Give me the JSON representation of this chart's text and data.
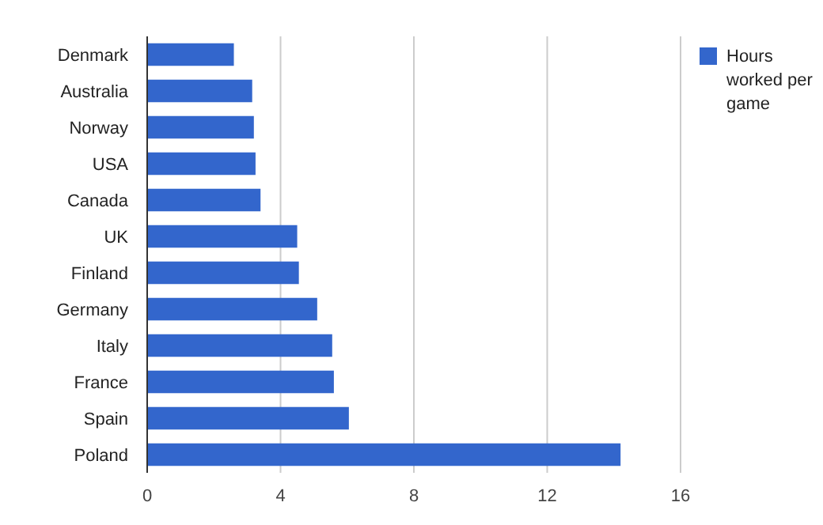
{
  "chart_data": {
    "type": "bar",
    "orientation": "horizontal",
    "categories": [
      "Denmark",
      "Australia",
      "Norway",
      "USA",
      "Canada",
      "UK",
      "Finland",
      "Germany",
      "Italy",
      "France",
      "Spain",
      "Poland"
    ],
    "series": [
      {
        "name": "Hours worked per game",
        "color": "#3366cc",
        "values": [
          2.6,
          3.15,
          3.2,
          3.25,
          3.4,
          4.5,
          4.55,
          5.1,
          5.55,
          5.6,
          6.05,
          14.2
        ]
      }
    ],
    "xlim": [
      0,
      16
    ],
    "xticks": [
      0,
      4,
      8,
      12,
      16
    ],
    "grid": "x",
    "legend": "top right"
  }
}
